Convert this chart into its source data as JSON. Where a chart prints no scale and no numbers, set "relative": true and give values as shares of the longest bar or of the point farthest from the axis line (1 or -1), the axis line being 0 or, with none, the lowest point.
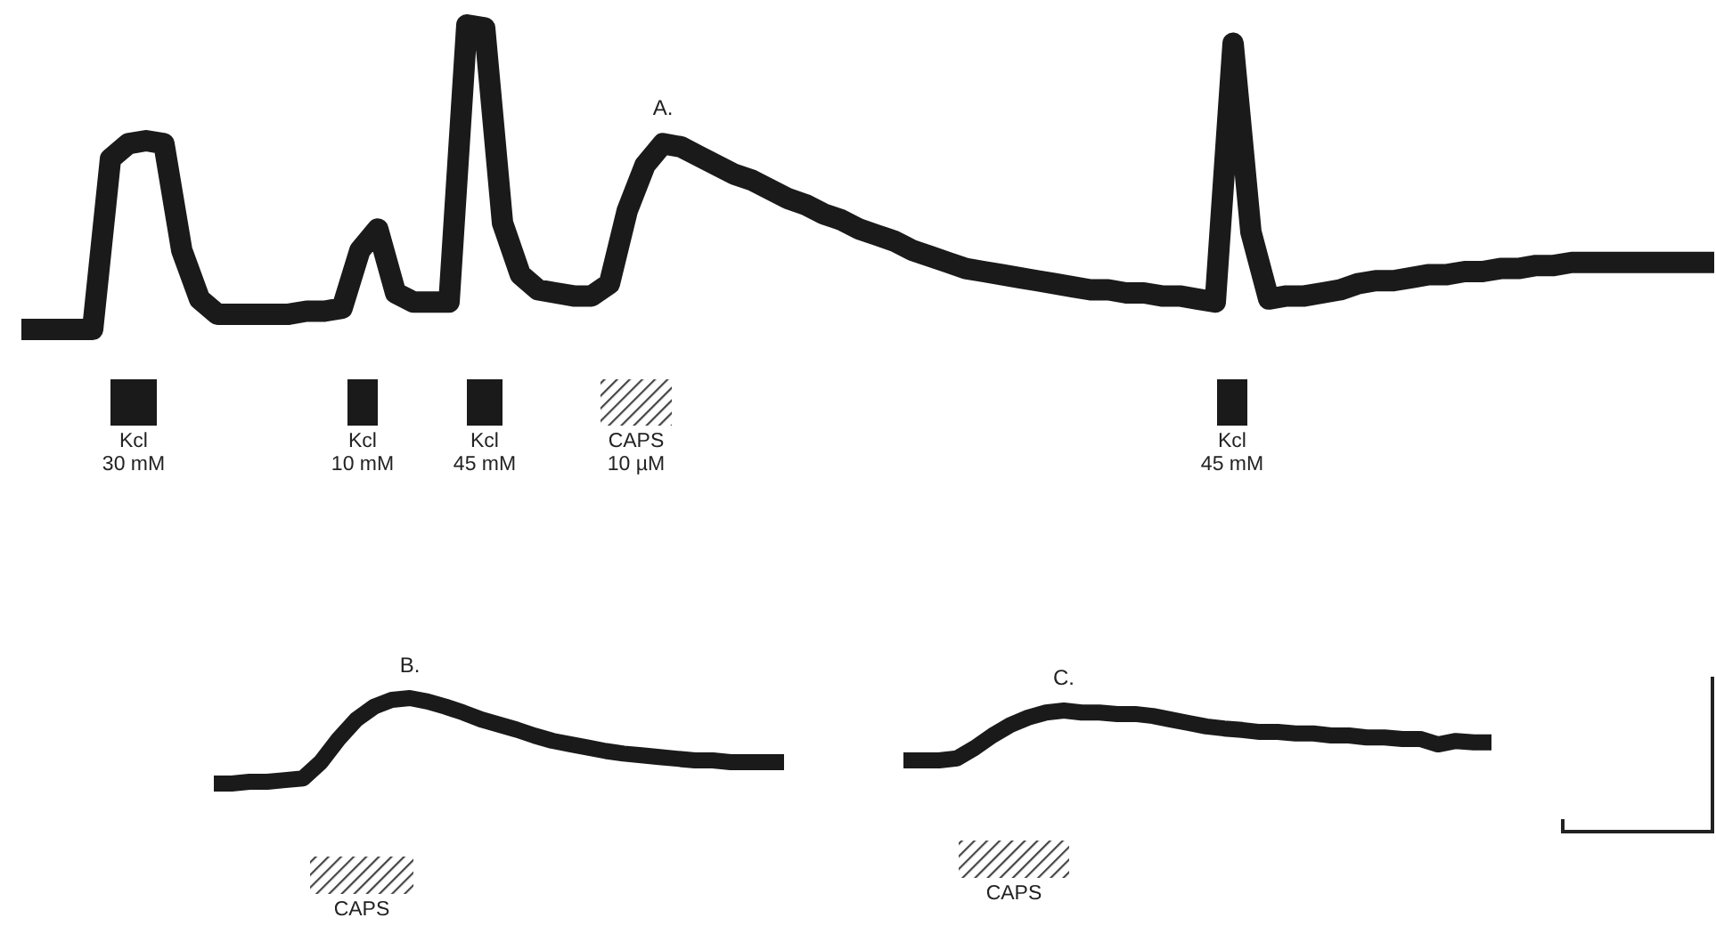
{
  "chart_data": [
    {
      "type": "line",
      "title": "A.",
      "relative": true,
      "color": "#1a1a1a",
      "categories": [
        null,
        null,
        null,
        null,
        null,
        null,
        null,
        null,
        null,
        null,
        null,
        null,
        null,
        null,
        null,
        null,
        null,
        null,
        null,
        null,
        null,
        null,
        null,
        null,
        null,
        null,
        null,
        null,
        null,
        null,
        null,
        null,
        null,
        null,
        null,
        null,
        null,
        null,
        null,
        null,
        null,
        null,
        null,
        null,
        null,
        null,
        null,
        null,
        null,
        null,
        null,
        null,
        null,
        null,
        null,
        null,
        null,
        null,
        null,
        null,
        null,
        null,
        null,
        null,
        null,
        null,
        null,
        null,
        null,
        null,
        null,
        null,
        null,
        null,
        null,
        null,
        null,
        null,
        null,
        null,
        null,
        null,
        null,
        null,
        null,
        null,
        null,
        null,
        null,
        null,
        null,
        null,
        null,
        null,
        null,
        null
      ],
      "values": [
        0,
        0,
        0,
        0,
        0,
        0.56,
        0.61,
        0.62,
        0.61,
        0.26,
        0.1,
        0.05,
        0.05,
        0.05,
        0.05,
        0.05,
        0.06,
        0.06,
        0.07,
        0.26,
        0.33,
        0.12,
        0.09,
        0.09,
        0.09,
        1,
        0.99,
        0.35,
        0.18,
        0.13,
        0.12,
        0.11,
        0.11,
        0.15,
        0.39,
        0.54,
        0.61,
        0.6,
        0.57,
        0.54,
        0.51,
        0.49,
        0.46,
        0.43,
        0.41,
        0.38,
        0.36,
        0.33,
        0.31,
        0.29,
        0.26,
        0.24,
        0.22,
        0.2,
        0.19,
        0.18,
        0.17,
        0.16,
        0.15,
        0.14,
        0.13,
        0.13,
        0.12,
        0.12,
        0.11,
        0.11,
        0.1,
        0.09,
        0.94,
        0.32,
        0.1,
        0.11,
        0.11,
        0.12,
        0.13,
        0.15,
        0.16,
        0.16,
        0.17,
        0.18,
        0.18,
        0.19,
        0.19,
        0.2,
        0.2,
        0.21,
        0.21,
        0.22,
        0.22,
        0.22,
        0.22,
        0.22,
        0.22,
        0.22,
        0.22,
        0.22
      ],
      "annotations": [
        "Kcl\n30 mM",
        "Kcl\n10 mM",
        "Kcl\n45 mM",
        "CAPS\n10 µM",
        "Kcl\n45 mM"
      ]
    },
    {
      "type": "line",
      "title": "B.",
      "relative": true,
      "color": "#1a1a1a",
      "categories": [
        null,
        null,
        null,
        null,
        null,
        null,
        null,
        null,
        null,
        null,
        null,
        null,
        null,
        null,
        null,
        null,
        null,
        null,
        null,
        null,
        null,
        null,
        null,
        null,
        null,
        null,
        null,
        null,
        null,
        null,
        null,
        null,
        null
      ],
      "values": [
        0,
        0,
        0.02,
        0.02,
        0.04,
        0.06,
        0.25,
        0.52,
        0.75,
        0.9,
        0.98,
        1,
        0.96,
        0.9,
        0.83,
        0.75,
        0.69,
        0.63,
        0.56,
        0.5,
        0.46,
        0.42,
        0.38,
        0.35,
        0.33,
        0.31,
        0.29,
        0.27,
        0.27,
        0.25,
        0.25,
        0.25,
        0.25
      ],
      "annotations": [
        "CAPS"
      ]
    },
    {
      "type": "line",
      "title": "C.",
      "relative": true,
      "color": "#1a1a1a",
      "categories": [
        null,
        null,
        null,
        null,
        null,
        null,
        null,
        null,
        null,
        null,
        null,
        null,
        null,
        null,
        null,
        null,
        null,
        null,
        null,
        null,
        null,
        null,
        null,
        null,
        null,
        null,
        null,
        null,
        null,
        null,
        null,
        null,
        null,
        null
      ],
      "values": [
        0,
        0,
        0,
        0.04,
        0.25,
        0.5,
        0.71,
        0.86,
        0.96,
        1,
        0.96,
        0.96,
        0.93,
        0.93,
        0.89,
        0.82,
        0.75,
        0.68,
        0.64,
        0.61,
        0.57,
        0.57,
        0.54,
        0.54,
        0.5,
        0.5,
        0.46,
        0.46,
        0.43,
        0.43,
        0.32,
        0.39,
        0.36,
        0.36
      ],
      "annotations": [
        "CAPS"
      ]
    }
  ]
}
